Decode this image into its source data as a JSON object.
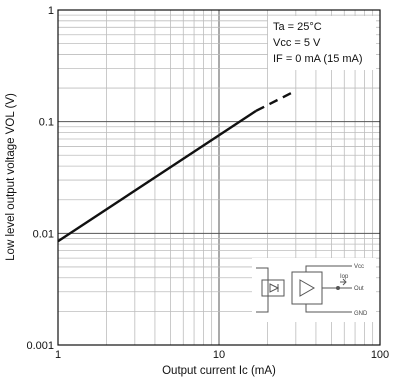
{
  "chart_data": {
    "type": "line",
    "scale": {
      "x": "log",
      "y": "log"
    },
    "xlim": [
      1,
      100
    ],
    "ylim": [
      0.001,
      1
    ],
    "grid": true,
    "xlabel": "Output current Ic (mA)",
    "ylabel": "Low level output voltage VOL (V)",
    "x_ticks": [
      {
        "value": 1,
        "label": "1"
      },
      {
        "value": 10,
        "label": "10"
      },
      {
        "value": 100,
        "label": "100"
      }
    ],
    "y_ticks": [
      {
        "value": 0.001,
        "label": "0.001"
      },
      {
        "value": 0.01,
        "label": "0.01"
      },
      {
        "value": 0.1,
        "label": "0.1"
      },
      {
        "value": 1,
        "label": "1"
      }
    ],
    "conditions": [
      "Ta = 25°C",
      "Vcc = 5 V",
      "IF = 0 mA (15 mA)"
    ],
    "series": [
      {
        "style": "solid",
        "points": [
          [
            1,
            0.0085
          ],
          [
            17,
            0.125
          ]
        ]
      },
      {
        "style": "dashed",
        "points": [
          [
            17,
            0.125
          ],
          [
            28,
            0.18
          ]
        ]
      }
    ],
    "inset_labels": [
      "Vcc",
      "Iop",
      "Out",
      "GND"
    ],
    "colors": {
      "line": "#111111",
      "grid": "#bdbdbd",
      "frame": "#111111"
    }
  }
}
